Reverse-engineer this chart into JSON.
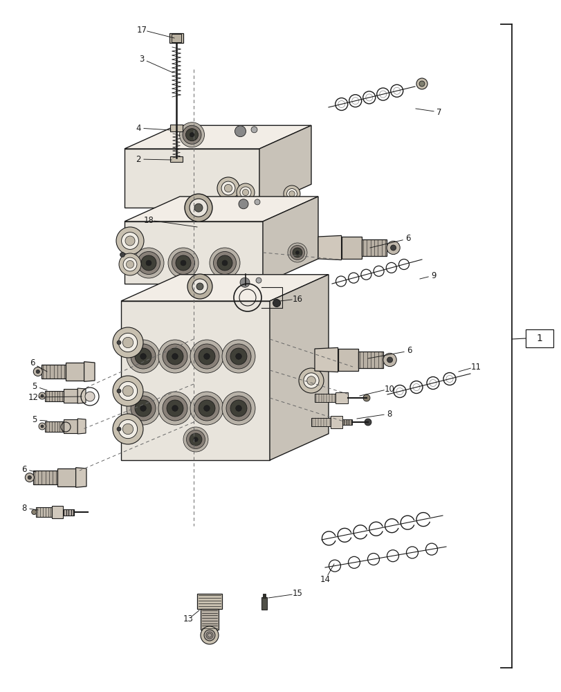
{
  "bg_color": "#ffffff",
  "line_color": "#1a1a1a",
  "fig_width": 8.12,
  "fig_height": 10.0,
  "dpi": 100,
  "face_color": "#e8e4dc",
  "top_color": "#f2ede6",
  "side_color": "#c8c2b8",
  "port_outer": "#c0bab0",
  "port_mid": "#908880",
  "port_inner": "#404040",
  "fitting_body": "#d0c8bc",
  "fitting_thread": "#b8b0a4"
}
